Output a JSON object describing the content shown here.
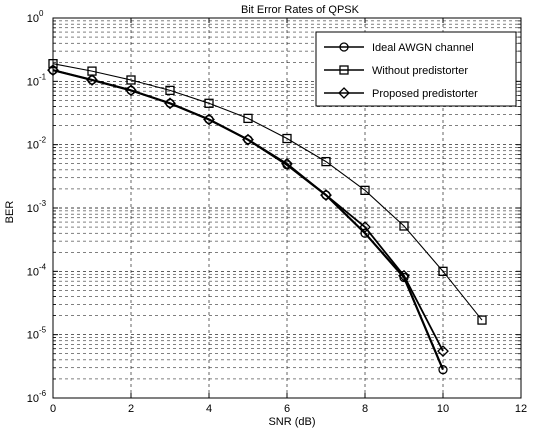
{
  "chart_data": {
    "type": "line",
    "title": "Bit Error Rates of QPSK",
    "xlabel": "SNR (dB)",
    "ylabel": "BER",
    "xlim": [
      0,
      12
    ],
    "ylim": [
      1e-06,
      1
    ],
    "yscale": "log",
    "grid": true,
    "legend_position": "top-right",
    "x_ticks": [
      "0",
      "2",
      "4",
      "6",
      "8",
      "10",
      "12"
    ],
    "y_ticks": [
      {
        "base": "10",
        "exp": "0"
      },
      {
        "base": "10",
        "exp": "-1"
      },
      {
        "base": "10",
        "exp": "-2"
      },
      {
        "base": "10",
        "exp": "-3"
      },
      {
        "base": "10",
        "exp": "-4"
      },
      {
        "base": "10",
        "exp": "-5"
      },
      {
        "base": "10",
        "exp": "-6"
      }
    ],
    "series": [
      {
        "name": "Ideal AWGN channel",
        "marker": "circle",
        "color": "#000000",
        "x": [
          0,
          1,
          2,
          3,
          4,
          5,
          6,
          7,
          8,
          9,
          10
        ],
        "y": [
          0.15,
          0.105,
          0.072,
          0.045,
          0.025,
          0.012,
          0.0048,
          0.0016,
          0.0004,
          8e-05,
          2.8e-06
        ]
      },
      {
        "name": "Without predistorter",
        "marker": "square",
        "color": "#000000",
        "x": [
          0,
          1,
          2,
          3,
          4,
          5,
          6,
          7,
          8,
          9,
          10,
          11
        ],
        "y": [
          0.19,
          0.145,
          0.105,
          0.072,
          0.045,
          0.026,
          0.0125,
          0.0054,
          0.0019,
          0.00052,
          0.0001,
          1.7e-05
        ]
      },
      {
        "name": "Proposed predistorter",
        "marker": "diamond",
        "color": "#000000",
        "x": [
          0,
          1,
          2,
          3,
          4,
          5,
          6,
          7,
          8,
          9,
          10
        ],
        "y": [
          0.15,
          0.105,
          0.072,
          0.045,
          0.025,
          0.012,
          0.005,
          0.0016,
          0.0005,
          8.5e-05,
          5.5e-06
        ]
      }
    ]
  }
}
